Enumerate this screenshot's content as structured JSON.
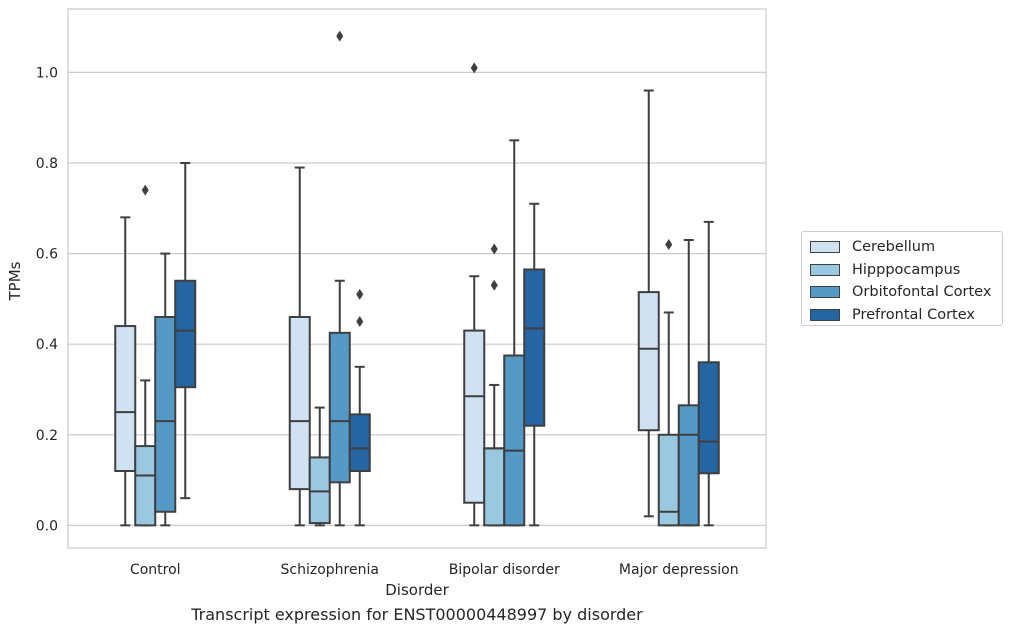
{
  "chart_data": {
    "type": "box",
    "caption": "Transcript expression for ENST00000448997 by disorder",
    "xlabel": "Disorder",
    "ylabel": "TPMs",
    "ylim": [
      -0.05,
      1.14
    ],
    "yticks": [
      "0.0",
      "0.2",
      "0.4",
      "0.6",
      "0.8",
      "1.0"
    ],
    "grid": "horizontal",
    "legend_placement": "right",
    "categories": [
      "Control",
      "Schizophrenia",
      "Bipolar disorder",
      "Major depression"
    ],
    "series": [
      {
        "name": "Cerebellum",
        "color": "#d0e1f2",
        "boxes": [
          {
            "whisker_low": 0.0,
            "q1": 0.12,
            "median": 0.25,
            "q3": 0.44,
            "whisker_high": 0.68,
            "outliers": []
          },
          {
            "whisker_low": 0.0,
            "q1": 0.08,
            "median": 0.23,
            "q3": 0.46,
            "whisker_high": 0.79,
            "outliers": []
          },
          {
            "whisker_low": 0.0,
            "q1": 0.05,
            "median": 0.285,
            "q3": 0.43,
            "whisker_high": 0.55,
            "outliers": [
              1.01
            ]
          },
          {
            "whisker_low": 0.02,
            "q1": 0.21,
            "median": 0.39,
            "q3": 0.515,
            "whisker_high": 0.96,
            "outliers": []
          }
        ]
      },
      {
        "name": "Hipppocampus",
        "color": "#9ac8e0",
        "boxes": [
          {
            "whisker_low": 0.0,
            "q1": 0.0,
            "median": 0.11,
            "q3": 0.175,
            "whisker_high": 0.32,
            "outliers": [
              0.74
            ]
          },
          {
            "whisker_low": 0.0,
            "q1": 0.005,
            "median": 0.075,
            "q3": 0.15,
            "whisker_high": 0.26,
            "outliers": []
          },
          {
            "whisker_low": 0.0,
            "q1": 0.0,
            "median": 0.17,
            "q3": 0.17,
            "whisker_high": 0.31,
            "outliers": [
              0.53,
              0.61
            ]
          },
          {
            "whisker_low": 0.0,
            "q1": 0.0,
            "median": 0.03,
            "q3": 0.2,
            "whisker_high": 0.47,
            "outliers": [
              0.62
            ]
          }
        ]
      },
      {
        "name": "Orbitofontal Cortex",
        "color": "#5599c7",
        "boxes": [
          {
            "whisker_low": 0.0,
            "q1": 0.03,
            "median": 0.23,
            "q3": 0.46,
            "whisker_high": 0.6,
            "outliers": []
          },
          {
            "whisker_low": 0.0,
            "q1": 0.095,
            "median": 0.23,
            "q3": 0.425,
            "whisker_high": 0.54,
            "outliers": [
              1.08
            ]
          },
          {
            "whisker_low": 0.0,
            "q1": 0.0,
            "median": 0.165,
            "q3": 0.375,
            "whisker_high": 0.85,
            "outliers": []
          },
          {
            "whisker_low": 0.0,
            "q1": 0.0,
            "median": 0.2,
            "q3": 0.265,
            "whisker_high": 0.63,
            "outliers": []
          }
        ]
      },
      {
        "name": "Prefrontal Cortex",
        "color": "#2565a4",
        "boxes": [
          {
            "whisker_low": 0.06,
            "q1": 0.305,
            "median": 0.43,
            "q3": 0.54,
            "whisker_high": 0.8,
            "outliers": []
          },
          {
            "whisker_low": 0.0,
            "q1": 0.12,
            "median": 0.17,
            "q3": 0.245,
            "whisker_high": 0.35,
            "outliers": [
              0.45,
              0.51
            ]
          },
          {
            "whisker_low": 0.0,
            "q1": 0.22,
            "median": 0.435,
            "q3": 0.565,
            "whisker_high": 0.71,
            "outliers": []
          },
          {
            "whisker_low": 0.0,
            "q1": 0.115,
            "median": 0.185,
            "q3": 0.36,
            "whisker_high": 0.67,
            "outliers": []
          }
        ]
      }
    ]
  }
}
